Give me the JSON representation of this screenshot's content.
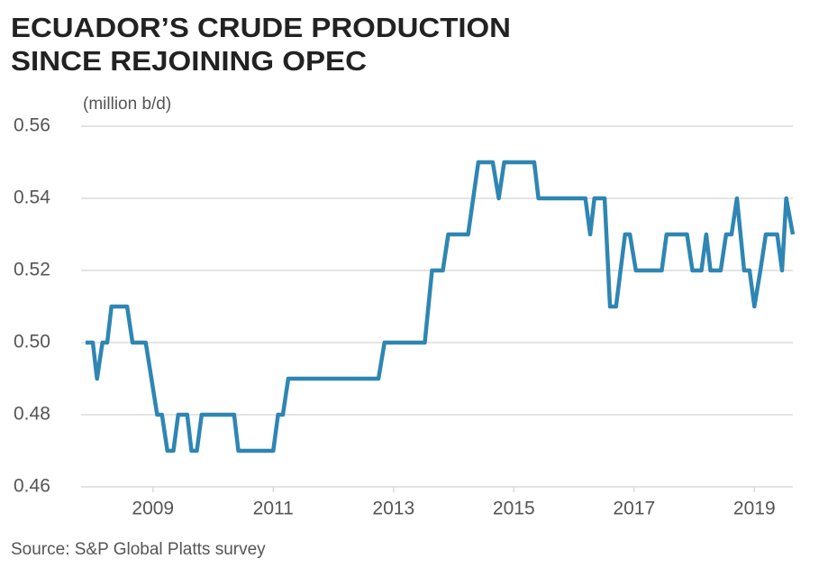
{
  "chart_data": {
    "type": "line",
    "title": [
      "ECUADOR’S CRUDE PRODUCTION",
      "SINCE REJOINING OPEC"
    ],
    "y_label": "(million b/d)",
    "source": "Source: S&P Global Platts survey",
    "color": "#2e86b3",
    "x": [
      2007.88,
      2008.0,
      2008.07,
      2008.16,
      2008.24,
      2008.31,
      2008.57,
      2008.66,
      2008.88,
      2009.07,
      2009.15,
      2009.24,
      2009.34,
      2009.42,
      2009.57,
      2009.64,
      2009.73,
      2009.81,
      2010.35,
      2010.42,
      2011.0,
      2011.08,
      2011.16,
      2011.25,
      2012.75,
      2012.85,
      2013.52,
      2013.64,
      2013.82,
      2013.91,
      2014.24,
      2014.41,
      2014.65,
      2014.75,
      2014.84,
      2015.34,
      2015.41,
      2016.19,
      2016.27,
      2016.34,
      2016.51,
      2016.6,
      2016.7,
      2016.85,
      2016.93,
      2017.03,
      2017.46,
      2017.54,
      2017.88,
      2017.97,
      2018.12,
      2018.2,
      2018.27,
      2018.44,
      2018.53,
      2018.62,
      2018.71,
      2018.83,
      2018.92,
      2019.0,
      2019.1,
      2019.19,
      2019.38,
      2019.46,
      2019.53,
      2019.64
    ],
    "values": [
      0.5,
      0.5,
      0.49,
      0.5,
      0.5,
      0.51,
      0.51,
      0.5,
      0.5,
      0.48,
      0.48,
      0.47,
      0.47,
      0.48,
      0.48,
      0.47,
      0.47,
      0.48,
      0.48,
      0.47,
      0.47,
      0.48,
      0.48,
      0.49,
      0.49,
      0.5,
      0.5,
      0.52,
      0.52,
      0.53,
      0.53,
      0.55,
      0.55,
      0.54,
      0.55,
      0.55,
      0.54,
      0.54,
      0.53,
      0.54,
      0.54,
      0.51,
      0.51,
      0.53,
      0.53,
      0.52,
      0.52,
      0.53,
      0.53,
      0.52,
      0.52,
      0.53,
      0.52,
      0.52,
      0.53,
      0.53,
      0.54,
      0.52,
      0.52,
      0.51,
      0.52,
      0.53,
      0.53,
      0.52,
      0.54,
      0.53
    ],
    "xlim": [
      2007.88,
      2019.64
    ],
    "xticks": [
      2009,
      2011,
      2013,
      2015,
      2017,
      2019
    ],
    "ylim": [
      0.46,
      0.56
    ],
    "yticks": [
      0.46,
      0.48,
      {
        "value": 0.5,
        "label": "0.50"
      },
      0.52,
      0.54,
      0.56
    ],
    "grid": true
  }
}
